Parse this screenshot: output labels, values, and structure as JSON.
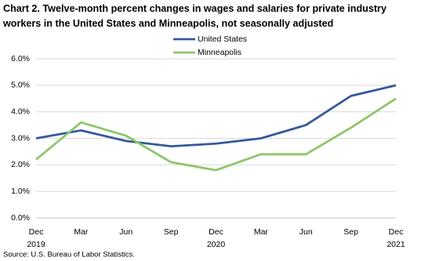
{
  "chart_data": {
    "type": "line",
    "title": "Chart 2. Twelve-month percent changes in wages and salaries for private industry workers in the United States and Minneapolis, not seasonally adjusted",
    "categories": [
      "Dec 2019",
      "Mar",
      "Jun",
      "Sep",
      "Dec 2020",
      "Mar",
      "Jun",
      "Sep",
      "Dec 2021"
    ],
    "series": [
      {
        "name": "United States",
        "color": "#35599a",
        "values": [
          3.0,
          3.3,
          2.9,
          2.7,
          2.8,
          3.0,
          3.5,
          4.6,
          5.0
        ]
      },
      {
        "name": "Minneapolis",
        "color": "#8dc66a",
        "values": [
          2.2,
          3.6,
          3.1,
          2.1,
          1.8,
          2.4,
          2.4,
          3.4,
          4.5
        ]
      }
    ],
    "ylim": [
      0,
      6
    ],
    "yticks": [
      {
        "value": 0,
        "label": "0.0%"
      },
      {
        "value": 1,
        "label": "1.0%"
      },
      {
        "value": 2,
        "label": "2.0%"
      },
      {
        "value": 3,
        "label": "3.0%"
      },
      {
        "value": 4,
        "label": "4.0%"
      },
      {
        "value": 5,
        "label": "5.0%"
      },
      {
        "value": 6,
        "label": "6.0%"
      }
    ],
    "grid": true,
    "source": "Source: U.S. Bureau of Labor Statistics."
  }
}
